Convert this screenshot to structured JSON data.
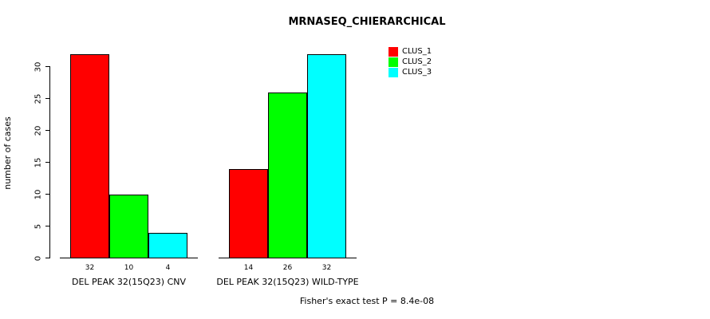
{
  "chart_data": {
    "type": "bar",
    "title": "MRNASEQ_CHIERARCHICAL",
    "ylabel": "number of cases",
    "xlabel": "",
    "categories": [
      "DEL PEAK 32(15Q23) CNV",
      "DEL PEAK 32(15Q23) WILD-TYPE"
    ],
    "series": [
      {
        "name": "CLUS_1",
        "color": "#ff0000",
        "values": [
          32,
          14
        ]
      },
      {
        "name": "CLUS_2",
        "color": "#00ff00",
        "values": [
          10,
          26
        ]
      },
      {
        "name": "CLUS_3",
        "color": "#00ffff",
        "values": [
          4,
          32
        ]
      }
    ],
    "bar_value_labels": [
      [
        32,
        10,
        4
      ],
      [
        14,
        26,
        32
      ]
    ],
    "yticks": [
      0,
      5,
      10,
      15,
      20,
      25,
      30
    ],
    "ylim": [
      0,
      33
    ],
    "grid": false,
    "legend_position": "top-right",
    "footnote": "Fisher's exact test P = 8.4e-08"
  }
}
